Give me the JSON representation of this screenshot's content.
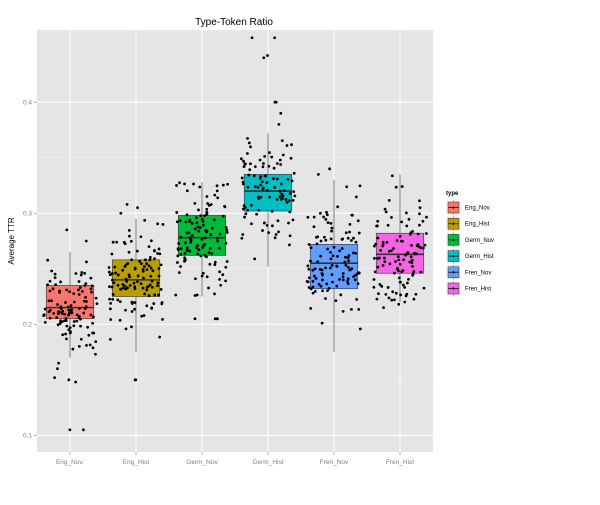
{
  "chart_data": {
    "type": "box",
    "title": "Type-Token Ratio",
    "xlabel": "",
    "ylabel": "Average TTR",
    "ylim": [
      0.085,
      0.465
    ],
    "yticks": [
      0.1,
      0.2,
      0.3,
      0.4
    ],
    "ytick_labels": [
      "0.1",
      "0.2",
      "0.3",
      "0.4"
    ],
    "grid": true,
    "legend_position": "right",
    "legend_title": "type",
    "categories": [
      "Eng_Nov.",
      "Eng_Hist",
      "Germ_Nov",
      "Germ_Hist",
      "Fren_Nov",
      "Fren_Hist"
    ],
    "series": [
      {
        "name": "Eng_Nov.",
        "color": "#f8766d",
        "min": 0.17,
        "q1": 0.205,
        "median": 0.215,
        "q3": 0.235,
        "max": 0.265,
        "n": 110,
        "outliers": [
          0.105,
          0.105,
          0.15,
          0.152,
          0.148,
          0.16,
          0.165,
          0.275,
          0.285
        ]
      },
      {
        "name": "Eng_Hist",
        "color": "#b79f00",
        "min": 0.175,
        "q1": 0.225,
        "median": 0.24,
        "q3": 0.258,
        "max": 0.295,
        "n": 120,
        "outliers": [
          0.15,
          0.15,
          0.3,
          0.305,
          0.308
        ]
      },
      {
        "name": "Germ_Nov",
        "color": "#00ba38",
        "min": 0.225,
        "q1": 0.262,
        "median": 0.278,
        "q3": 0.298,
        "max": 0.328,
        "n": 120,
        "outliers": [
          0.205,
          0.205,
          0.205,
          0.205
        ]
      },
      {
        "name": "Germ_Hist",
        "color": "#00bfc4",
        "min": 0.252,
        "q1": 0.302,
        "median": 0.32,
        "q3": 0.335,
        "max": 0.372,
        "n": 100,
        "outliers": [
          0.38,
          0.39,
          0.4,
          0.4,
          0.44,
          0.442,
          0.458,
          0.458
        ]
      },
      {
        "name": "Fren_Nov",
        "color": "#619cff",
        "min": 0.175,
        "q1": 0.232,
        "median": 0.255,
        "q3": 0.272,
        "max": 0.33,
        "n": 120,
        "outliers": [
          0.335,
          0.34
        ]
      },
      {
        "name": "Fren_Hist",
        "color": "#f564e3",
        "min": 0.22,
        "q1": 0.246,
        "median": 0.263,
        "q3": 0.282,
        "max": 0.335,
        "n": 110,
        "outliers": [
          0.215,
          0.218
        ]
      }
    ]
  }
}
